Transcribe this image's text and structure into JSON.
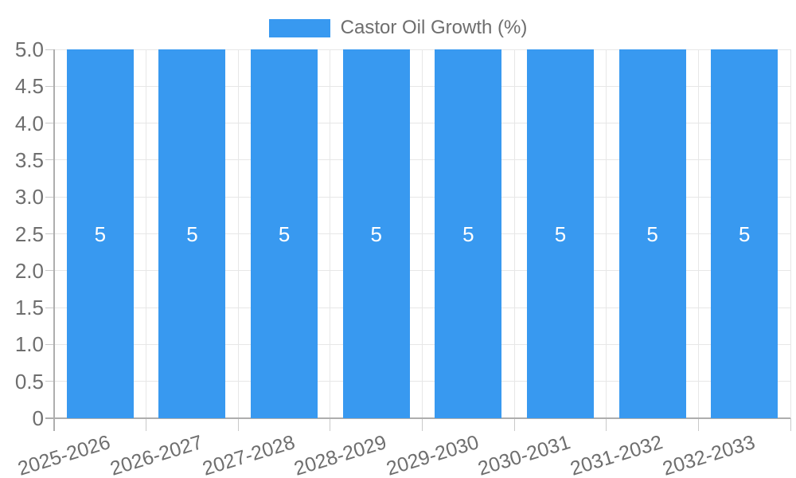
{
  "colors": {
    "bar": "#3899f0",
    "bar_label": "#ffffff",
    "axis_text": "#6e6e6e",
    "grid_line": "#e7e7e7",
    "axis_line": "#aeaeae",
    "tick": "#c9c9c9",
    "background": "#ffffff"
  },
  "chart_data": {
    "type": "bar",
    "title": "",
    "legend_label": "Castor Oil Growth (%)",
    "legend_position": "top-center",
    "categories": [
      "2025-2026",
      "2026-2027",
      "2027-2028",
      "2028-2029",
      "2029-2030",
      "2030-2031",
      "2031-2032",
      "2032-2033"
    ],
    "values": [
      5,
      5,
      5,
      5,
      5,
      5,
      5,
      5
    ],
    "xlabel": "",
    "ylabel": "",
    "ylim": [
      0,
      5
    ],
    "grid": true,
    "x_label_rotation_deg": -17,
    "yticks": [
      {
        "label": "0",
        "value": 0
      },
      {
        "label": "0.5",
        "value": 0.5
      },
      {
        "label": "1.0",
        "value": 1
      },
      {
        "label": "1.5",
        "value": 1.5
      },
      {
        "label": "2.0",
        "value": 2
      },
      {
        "label": "2.5",
        "value": 2.5
      },
      {
        "label": "3.0",
        "value": 3
      },
      {
        "label": "3.5",
        "value": 3.5
      },
      {
        "label": "4.0",
        "value": 4
      },
      {
        "label": "4.5",
        "value": 4.5
      },
      {
        "label": "5.0",
        "value": 5
      }
    ]
  }
}
